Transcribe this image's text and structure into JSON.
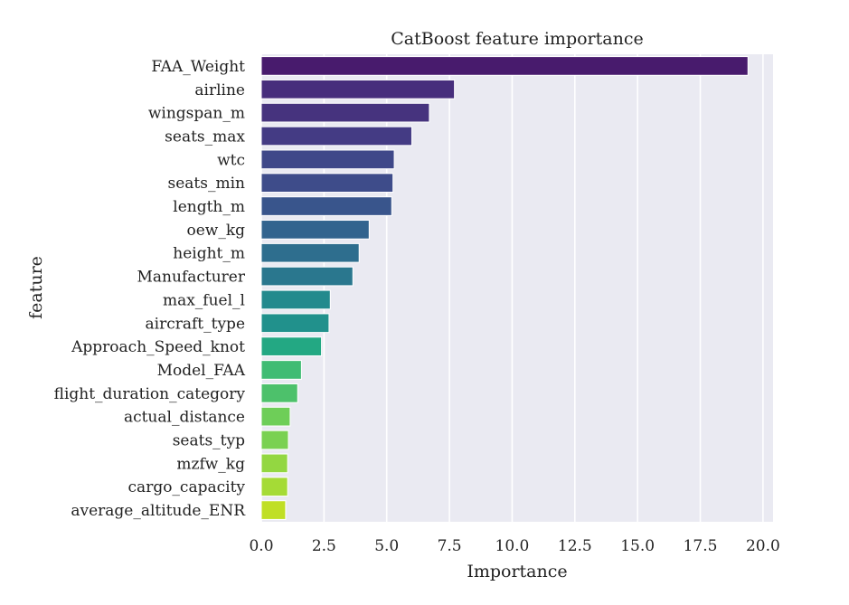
{
  "chart_data": {
    "type": "bar",
    "orientation": "horizontal",
    "title": "CatBoost feature importance",
    "xlabel": "Importance",
    "ylabel": "feature",
    "xlim": [
      0,
      20.4
    ],
    "xticks": [
      0.0,
      2.5,
      5.0,
      7.5,
      10.0,
      12.5,
      15.0,
      17.5,
      20.0
    ],
    "xtick_labels": [
      "0.0",
      "2.5",
      "5.0",
      "7.5",
      "10.0",
      "12.5",
      "15.0",
      "17.5",
      "20.0"
    ],
    "grid": true,
    "colormap": "viridis",
    "background_color": "#eaeaf2",
    "categories": [
      "FAA_Weight",
      "airline",
      "wingspan_m",
      "seats_max",
      "wtc",
      "seats_min",
      "length_m",
      "oew_kg",
      "height_m",
      "Manufacturer",
      "max_fuel_l",
      "aircraft_type",
      "Approach_Speed_knot",
      "Model_FAA",
      "flight_duration_category",
      "actual_distance",
      "seats_typ",
      "mzfw_kg",
      "cargo_capacity",
      "average_altitude_ENR"
    ],
    "values": [
      19.4,
      7.7,
      6.7,
      6.0,
      5.3,
      5.25,
      5.2,
      4.3,
      3.9,
      3.65,
      2.75,
      2.7,
      2.4,
      1.6,
      1.45,
      1.15,
      1.08,
      1.05,
      1.05,
      0.97
    ],
    "colors": [
      "#481b6d",
      "#472e7c",
      "#46337e",
      "#443b84",
      "#3f4889",
      "#3e4c8a",
      "#39558c",
      "#32648e",
      "#2e6e8e",
      "#2a778e",
      "#238a8d",
      "#21918c",
      "#23a883",
      "#3fbc73",
      "#4dc16b",
      "#6ece58",
      "#7ad151",
      "#93d741",
      "#a5db36",
      "#c0df25"
    ]
  }
}
